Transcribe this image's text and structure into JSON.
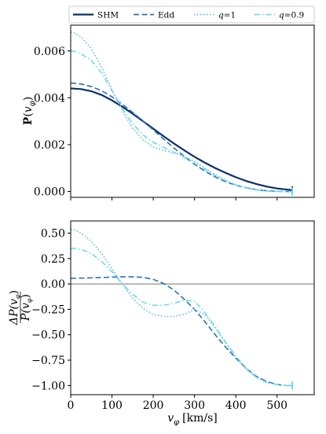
{
  "chart_data": [
    {
      "type": "line",
      "panel": "top",
      "ylabel": "P(v_φ)",
      "ylabel_main": "P",
      "ylabel_arg": "v",
      "ylabel_sub": "φ",
      "xlim": [
        0,
        590
      ],
      "ylim": [
        -0.00025,
        0.0071
      ],
      "xticks": [
        0,
        100,
        200,
        300,
        400,
        500
      ],
      "yticks": [
        0.0,
        0.002,
        0.004,
        0.006
      ],
      "ytick_labels": [
        "0.000",
        "0.002",
        "0.004",
        "0.006"
      ],
      "legend_position": "top (above panels)",
      "series": [
        {
          "name": "SHM",
          "color": "#0b2e6b",
          "dash": "solid",
          "x": [
            0,
            25,
            50,
            75,
            100,
            125,
            150,
            175,
            200,
            225,
            250,
            275,
            300,
            325,
            350,
            375,
            400,
            425,
            450,
            475,
            500,
            525,
            537
          ],
          "y": [
            0.0044,
            0.00437,
            0.00428,
            0.00412,
            0.00389,
            0.00362,
            0.00332,
            0.003,
            0.00268,
            0.00236,
            0.00205,
            0.00176,
            0.00148,
            0.00123,
            0.001,
            0.0008,
            0.00061,
            0.00045,
            0.00032,
            0.00021,
            0.00013,
            8e-05,
            6e-05
          ]
        },
        {
          "name": "Edd",
          "color": "#2a72b2",
          "dash": "dashed",
          "x": [
            0,
            25,
            50,
            75,
            100,
            125,
            150,
            175,
            200,
            225,
            250,
            275,
            300,
            325,
            350,
            375,
            400,
            425,
            450,
            475,
            500,
            525,
            537
          ],
          "y": [
            0.00463,
            0.00459,
            0.00448,
            0.0043,
            0.00404,
            0.00372,
            0.00338,
            0.00301,
            0.00263,
            0.00224,
            0.00186,
            0.0015,
            0.00116,
            0.00087,
            0.00062,
            0.00042,
            0.00027,
            0.00016,
            8e-05,
            3e-05,
            1e-05,
            0.0,
            0.0
          ]
        },
        {
          "name": "q = 1",
          "color": "#5bb8e8",
          "dash": "dotted",
          "x": [
            0,
            10,
            25,
            50,
            75,
            100,
            125,
            150,
            175,
            200,
            225,
            250,
            275,
            300,
            325,
            350,
            375,
            400,
            425,
            450,
            475,
            500,
            525,
            537
          ],
          "y": [
            0.0068,
            0.00676,
            0.0066,
            0.0061,
            0.0053,
            0.00435,
            0.00345,
            0.0027,
            0.0022,
            0.0019,
            0.00175,
            0.00165,
            0.0015,
            0.00128,
            0.001,
            0.00072,
            0.00048,
            0.00029,
            0.00015,
            7e-05,
            2e-05,
            0.0,
            0.0,
            0.0
          ]
        },
        {
          "name": "q = 0.9",
          "color": "#6fd8f0",
          "dash": "dashdot",
          "x": [
            0,
            10,
            25,
            50,
            75,
            100,
            125,
            150,
            175,
            200,
            225,
            250,
            275,
            300,
            325,
            350,
            375,
            400,
            425,
            450,
            475,
            500,
            525,
            537
          ],
          "y": [
            0.006,
            0.00598,
            0.00588,
            0.0056,
            0.00505,
            0.0043,
            0.00355,
            0.0029,
            0.00242,
            0.0021,
            0.00188,
            0.00168,
            0.00145,
            0.0012,
            0.00094,
            0.00068,
            0.00046,
            0.00028,
            0.00015,
            7e-05,
            2e-05,
            0.0,
            0.0,
            0.0
          ]
        }
      ]
    },
    {
      "type": "line",
      "panel": "bottom",
      "xlabel": "v_φ [km/s]",
      "xlabel_main": "v",
      "xlabel_sub": "φ",
      "xlabel_unit": "[km/s]",
      "ylabel": "ΔP(v_φ) / P(v_φ)",
      "ylabel_num": "ΔP(v",
      "ylabel_den": "P(v",
      "ylabel_sub": "φ",
      "xlim": [
        0,
        590
      ],
      "ylim": [
        -1.09,
        0.62
      ],
      "xticks": [
        0,
        100,
        200,
        300,
        400,
        500
      ],
      "xtick_labels": [
        "0",
        "100",
        "200",
        "300",
        "400",
        "500"
      ],
      "yticks": [
        0.5,
        0.25,
        0.0,
        -0.25,
        -0.5,
        -0.75,
        -1.0
      ],
      "ytick_labels": [
        "0.50",
        "0.25",
        "0.00",
        "−0.25",
        "−0.50",
        "−0.75",
        "−1.00"
      ],
      "hline": 0,
      "series": [
        {
          "name": "Edd",
          "color": "#2a72b2",
          "dash": "dashed",
          "x": [
            0,
            25,
            50,
            75,
            100,
            125,
            150,
            175,
            200,
            225,
            250,
            275,
            300,
            325,
            350,
            375,
            400,
            425,
            450,
            475,
            500,
            525,
            537
          ],
          "y": [
            0.055,
            0.057,
            0.06,
            0.063,
            0.067,
            0.07,
            0.07,
            0.065,
            0.045,
            0.005,
            -0.06,
            -0.15,
            -0.25,
            -0.37,
            -0.5,
            -0.62,
            -0.73,
            -0.83,
            -0.91,
            -0.96,
            -0.99,
            -1.0,
            -1.0
          ]
        },
        {
          "name": "q = 1",
          "color": "#5bb8e8",
          "dash": "dotted",
          "x": [
            0,
            10,
            25,
            50,
            75,
            100,
            125,
            150,
            175,
            200,
            225,
            250,
            275,
            300,
            325,
            350,
            375,
            400,
            425,
            450,
            475,
            500,
            525,
            537
          ],
          "y": [
            0.54,
            0.53,
            0.5,
            0.42,
            0.3,
            0.15,
            0.0,
            -0.14,
            -0.24,
            -0.3,
            -0.32,
            -0.32,
            -0.3,
            -0.25,
            -0.3,
            -0.43,
            -0.58,
            -0.72,
            -0.84,
            -0.92,
            -0.97,
            -0.99,
            -1.0,
            -1.0
          ]
        },
        {
          "name": "q = 0.9",
          "color": "#6fd8f0",
          "dash": "dashdot",
          "x": [
            0,
            10,
            25,
            50,
            75,
            100,
            125,
            150,
            175,
            200,
            225,
            250,
            275,
            300,
            325,
            350,
            375,
            400,
            425,
            450,
            475,
            500,
            525,
            537
          ],
          "y": [
            0.35,
            0.35,
            0.34,
            0.3,
            0.22,
            0.12,
            0.0,
            -0.1,
            -0.18,
            -0.21,
            -0.21,
            -0.19,
            -0.16,
            -0.17,
            -0.28,
            -0.42,
            -0.57,
            -0.71,
            -0.83,
            -0.92,
            -0.97,
            -0.99,
            -1.0,
            -1.0
          ]
        }
      ]
    }
  ]
}
